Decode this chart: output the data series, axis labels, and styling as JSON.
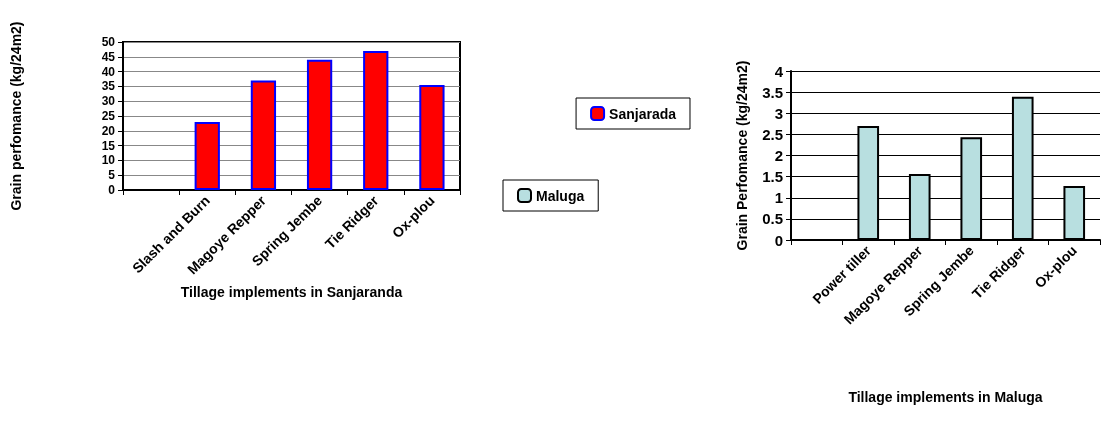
{
  "chart_data": [
    {
      "type": "bar",
      "xlabel": "Tillage implements in Sanjaranda",
      "ylabel": "Grain perfomance (kg/24m2)",
      "categories": [
        null,
        "Slash and Burn",
        "Magoye Repper",
        "Spring Jembe",
        "Tie Ridger",
        "Ox-plou"
      ],
      "series": [
        {
          "name": "Sanjarada",
          "color": "#ff0000",
          "values": [
            null,
            23,
            37,
            44,
            47,
            35.5
          ]
        }
      ],
      "ylim": [
        0,
        50
      ],
      "yticks": [
        0,
        5,
        10,
        15,
        20,
        25,
        30,
        35,
        40,
        45,
        50
      ],
      "grid": "y",
      "legend": "right"
    },
    {
      "type": "bar",
      "xlabel": "Tillage implements in Maluga",
      "ylabel": "Grain Perfomance (kg/24m2)",
      "categories": [
        null,
        "Power tiller",
        "Magoye Repper",
        "Spring Jembe",
        "Tie Ridger",
        "Ox-plou"
      ],
      "series": [
        {
          "name": "Maluga",
          "color": "#b8dfe0",
          "values": [
            null,
            2.7,
            1.56,
            2.43,
            3.39,
            1.28
          ]
        }
      ],
      "ylim": [
        0,
        4
      ],
      "yticks": [
        0,
        0.5,
        1,
        1.5,
        2,
        2.5,
        3,
        3.5,
        4
      ],
      "grid": "y",
      "legend": "left"
    }
  ]
}
